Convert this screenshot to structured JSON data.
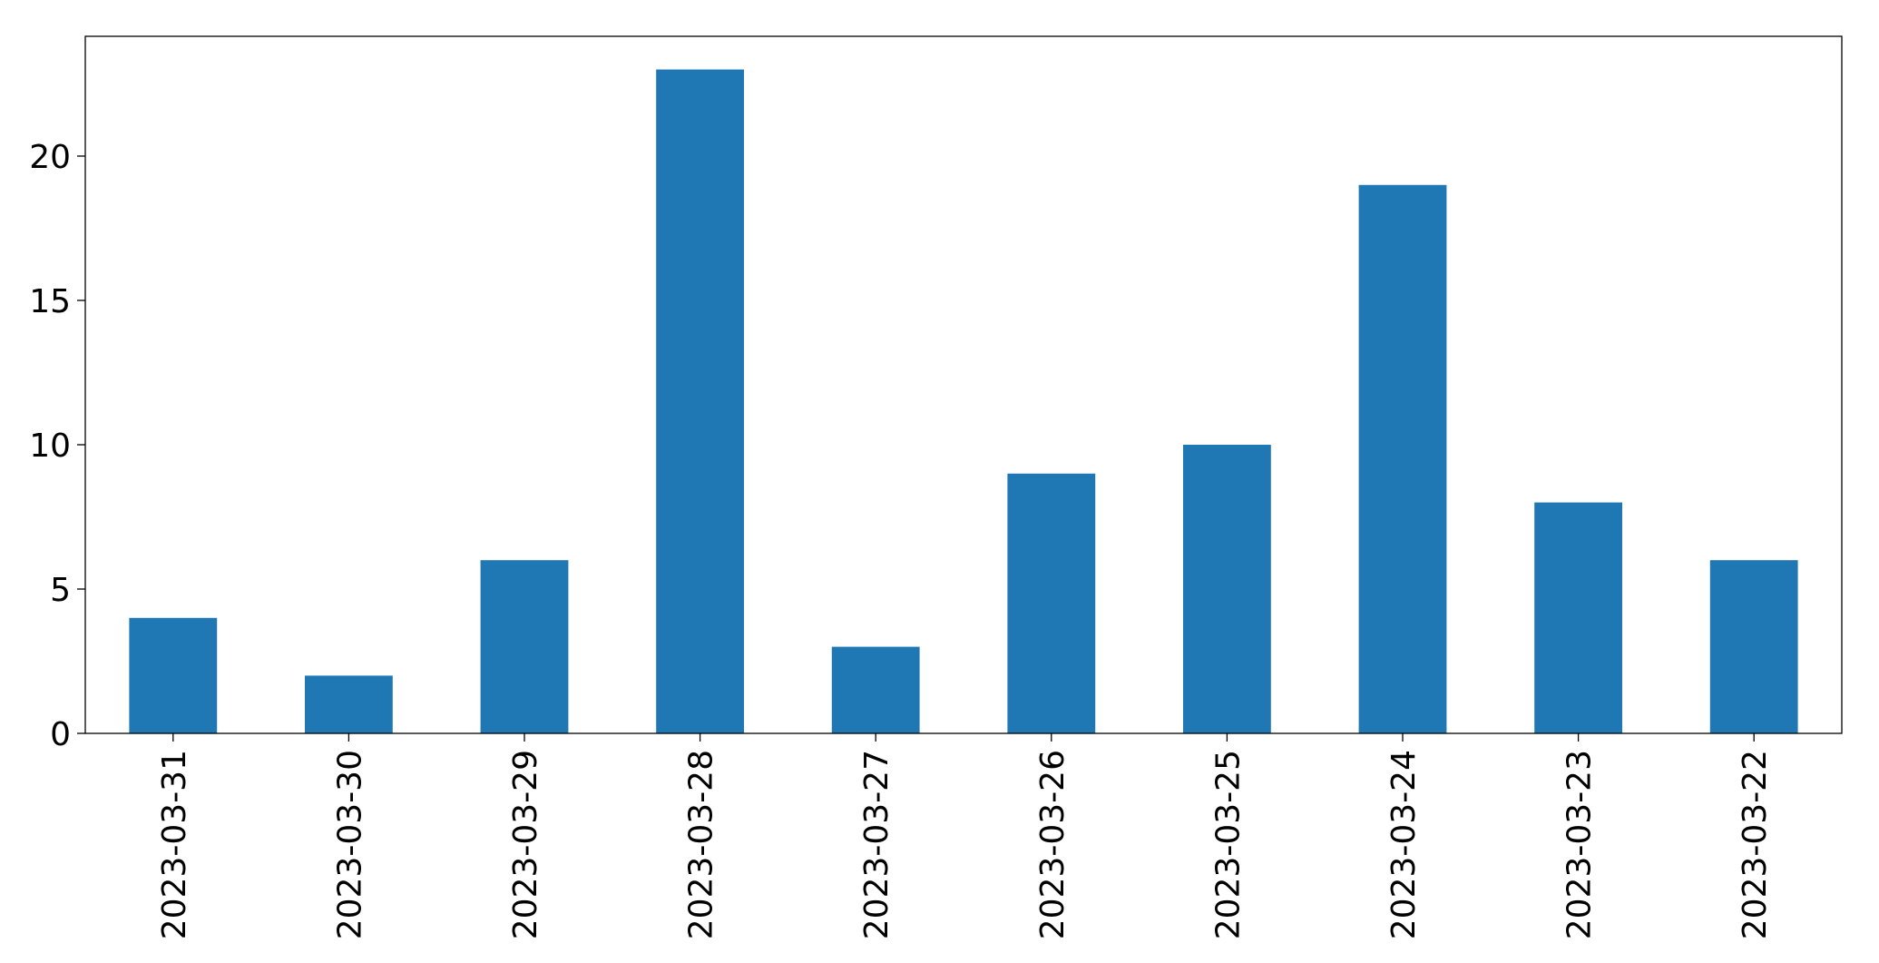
{
  "chart_data": {
    "type": "bar",
    "categories": [
      "2023-03-31",
      "2023-03-30",
      "2023-03-29",
      "2023-03-28",
      "2023-03-27",
      "2023-03-26",
      "2023-03-25",
      "2023-03-24",
      "2023-03-23",
      "2023-03-22"
    ],
    "values": [
      4,
      2,
      6,
      23,
      3,
      9,
      10,
      19,
      8,
      6
    ],
    "color": "#1f77b4",
    "ylim": [
      0,
      24.15
    ],
    "yticks": [
      0,
      5,
      10,
      15,
      20
    ],
    "grid": false
  }
}
